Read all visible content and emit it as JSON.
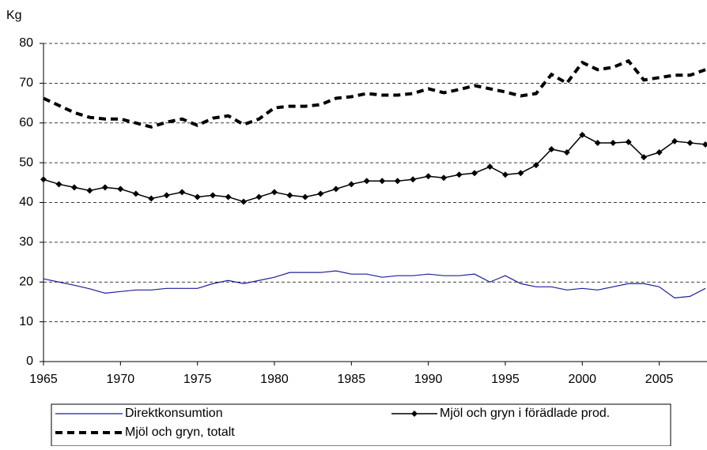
{
  "chart_data": {
    "type": "line",
    "y_axis_label": "Kg",
    "x": [
      1965,
      1966,
      1967,
      1968,
      1969,
      1970,
      1971,
      1972,
      1973,
      1974,
      1975,
      1976,
      1977,
      1978,
      1979,
      1980,
      1981,
      1982,
      1983,
      1984,
      1985,
      1986,
      1987,
      1988,
      1989,
      1990,
      1991,
      1992,
      1993,
      1994,
      1995,
      1996,
      1997,
      1998,
      1999,
      2000,
      2001,
      2002,
      2003,
      2004,
      2005,
      2006,
      2007,
      2008
    ],
    "series": [
      {
        "name": "Direktkonsumtion",
        "color": "#1f1f99",
        "style": "solid",
        "values": [
          20.8,
          20,
          19.2,
          18.3,
          17.2,
          17.6,
          18,
          18,
          18.4,
          18.4,
          18.4,
          19.6,
          20.4,
          19.6,
          20.4,
          21.2,
          22.4,
          22.4,
          22.4,
          22.8,
          22,
          22,
          21.2,
          21.6,
          21.6,
          22,
          21.6,
          21.6,
          22,
          20,
          21.6,
          19.6,
          18.8,
          18.8,
          18,
          18.4,
          18,
          18.8,
          19.6,
          19.6,
          18.8,
          16,
          16.4,
          18.4
        ]
      },
      {
        "name": "Mjöl och gryn i förädlade prod.",
        "color": "#000000",
        "style": "markers",
        "values": [
          45.8,
          44.6,
          43.8,
          43,
          43.8,
          43.4,
          42.2,
          41,
          41.8,
          42.6,
          41.4,
          41.8,
          41.4,
          40.2,
          41.4,
          42.6,
          41.8,
          41.4,
          42.2,
          43.4,
          44.6,
          45.4,
          45.4,
          45.4,
          45.8,
          46.6,
          46.2,
          47,
          47.4,
          49,
          47,
          47.4,
          49.4,
          53.4,
          52.6,
          57,
          55,
          55,
          55.2,
          51.4,
          52.6,
          55.4,
          55,
          54.6
        ]
      },
      {
        "name": "Mjöl och gryn, totalt",
        "color": "#000000",
        "style": "dashed",
        "values": [
          66.2,
          64.4,
          62.6,
          61.4,
          61,
          61,
          60,
          59,
          60.2,
          61,
          59.4,
          61.2,
          61.8,
          59.6,
          61,
          63.8,
          64.2,
          64.2,
          64.6,
          66.2,
          66.6,
          67.4,
          67,
          67,
          67.4,
          68.6,
          67.6,
          68.4,
          69.4,
          68.6,
          67.8,
          66.8,
          67.4,
          72.2,
          70,
          75.2,
          73.4,
          74,
          75.6,
          70.8,
          71.4,
          72,
          72,
          73.4
        ]
      }
    ],
    "xlim": [
      1965,
      2008
    ],
    "xticks": [
      1965,
      1970,
      1975,
      1980,
      1985,
      1990,
      1995,
      2000,
      2005
    ],
    "ylim": [
      0,
      80
    ],
    "yticks": [
      0,
      10,
      20,
      30,
      40,
      50,
      60,
      70,
      80
    ],
    "grid": true
  }
}
